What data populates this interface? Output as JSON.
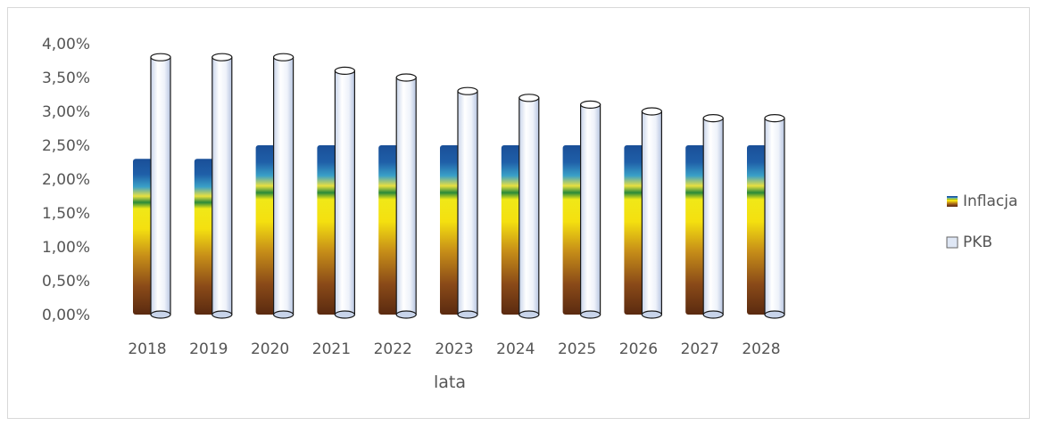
{
  "chart_data": {
    "type": "bar",
    "title": "",
    "xlabel": "lata",
    "ylabel": "",
    "categories": [
      "2018",
      "2019",
      "2020",
      "2021",
      "2022",
      "2023",
      "2024",
      "2025",
      "2026",
      "2027",
      "2028"
    ],
    "ylim": [
      0,
      4.0
    ],
    "yticks": [
      "0,00%",
      "0,50%",
      "1,00%",
      "1,50%",
      "2,00%",
      "2,50%",
      "3,00%",
      "3,50%",
      "4,00%"
    ],
    "grid": false,
    "legend_position": "right",
    "series": [
      {
        "name": "Inflacja",
        "values": [
          2.3,
          2.3,
          2.5,
          2.5,
          2.5,
          2.5,
          2.5,
          2.5,
          2.5,
          2.5,
          2.5
        ],
        "color": "#1f5fa8"
      },
      {
        "name": "PKB",
        "values": [
          3.8,
          3.8,
          3.8,
          3.6,
          3.5,
          3.3,
          3.2,
          3.1,
          3.0,
          2.9,
          2.9
        ],
        "color": "#dfe7f5"
      }
    ]
  }
}
